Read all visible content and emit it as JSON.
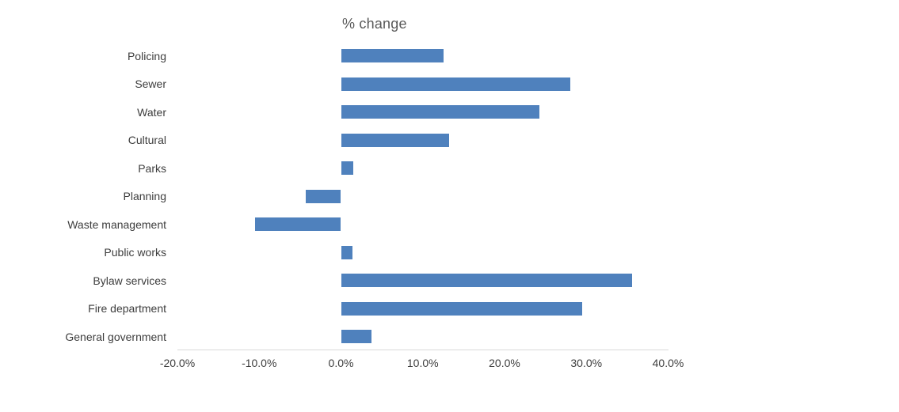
{
  "chart_data": {
    "type": "bar",
    "orientation": "horizontal",
    "title": "% change",
    "xlabel": "",
    "ylabel": "",
    "categories": [
      "Policing",
      "Sewer",
      "Water",
      "Cultural",
      "Parks",
      "Planning",
      "Waste management",
      "Public works",
      "Bylaw services",
      "Fire department",
      "General government"
    ],
    "values": [
      12.5,
      28.0,
      24.3,
      13.2,
      1.5,
      -4.3,
      -10.5,
      1.4,
      35.6,
      29.5,
      3.7
    ],
    "unit": "%",
    "xlim": [
      -20,
      40
    ],
    "x_tick_values": [
      -20,
      -10,
      0,
      10,
      20,
      30,
      40
    ],
    "x_tick_labels": [
      "-20.0%",
      "-10.0%",
      "0.0%",
      "10.0%",
      "20.0%",
      "30.0%",
      "40.0%"
    ],
    "grid": false,
    "legend": false,
    "colors": {
      "bar": "#4f81bd",
      "axis_line": "#d9d9d9",
      "title": "#595959",
      "labels": "#3d3d3d",
      "background": "#ffffff"
    }
  }
}
